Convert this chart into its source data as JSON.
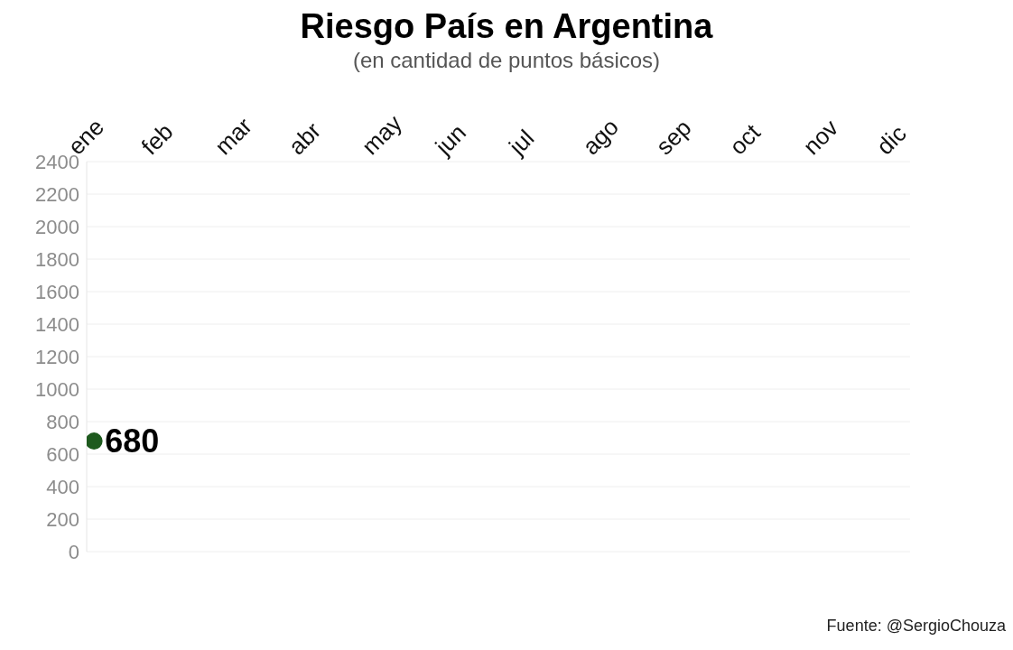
{
  "chart_data": {
    "type": "line",
    "title": "Riesgo País en Argentina",
    "subtitle": "(en cantidad de puntos básicos)",
    "categories": [
      "ene",
      "feb",
      "mar",
      "abr",
      "may",
      "jun",
      "jul",
      "ago",
      "sep",
      "oct",
      "nov",
      "dic"
    ],
    "series": [
      {
        "color": "#1e5a1e",
        "values": [
          680,
          null,
          null,
          null,
          null,
          null,
          null,
          null,
          null,
          null,
          null,
          null
        ]
      }
    ],
    "ylim": [
      0,
      2400
    ],
    "yticks": [
      0,
      200,
      400,
      600,
      800,
      1000,
      1200,
      1400,
      1600,
      1800,
      2000,
      2200,
      2400
    ],
    "grid": "y",
    "marker": "circle",
    "data_labels": true,
    "annotations": [
      "Fuente: @SergioChouza"
    ]
  }
}
